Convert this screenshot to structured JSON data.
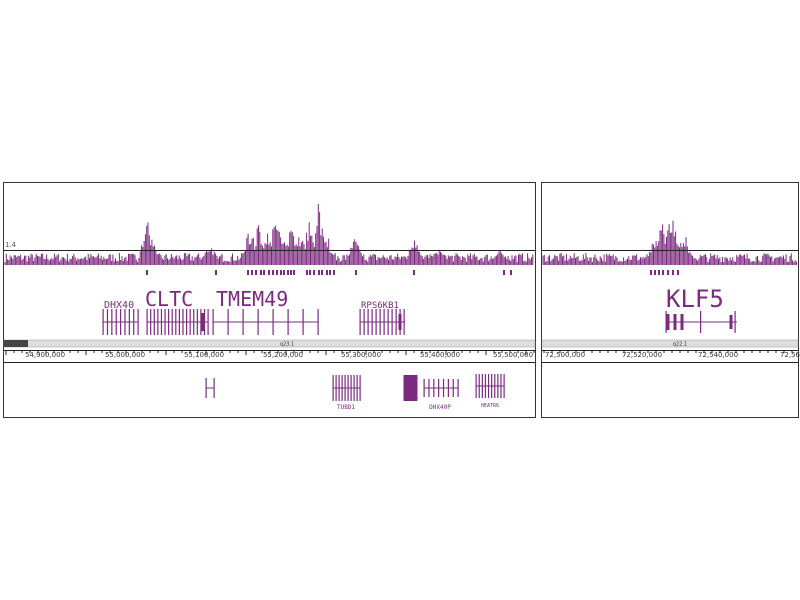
{
  "left": {
    "scale_label": "1.4",
    "genes": [
      "DHX40",
      "CLTC",
      "TMEM49",
      "RPS6KB1"
    ],
    "band": "q23.1",
    "coordinates": [
      "54,900,000",
      "55,000,000",
      "55,100,000",
      "55,200,000",
      "55,300,000",
      "55,400,000",
      "55,500,000"
    ],
    "lower_genes": [
      "TUBD1",
      "DHX40P",
      "HEATR6"
    ]
  },
  "right": {
    "genes": [
      "KLF5"
    ],
    "band": "q22.1",
    "coordinates": [
      "72,500,000",
      "72,520,000",
      "72,540,000",
      "72,56"
    ]
  }
}
